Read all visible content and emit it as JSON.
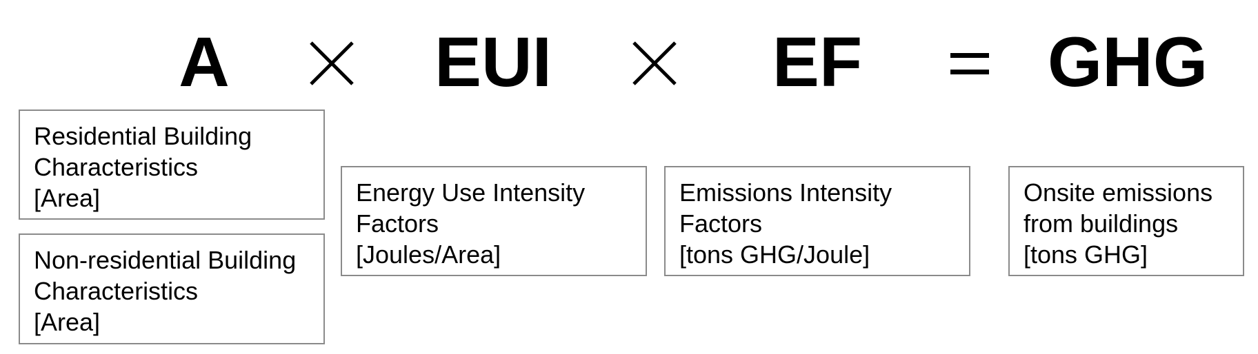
{
  "equation": {
    "term_area": "A",
    "op_multiply_1": "×",
    "term_eui": "EUI",
    "op_multiply_2": "×",
    "term_ef": "EF",
    "op_equals": "=",
    "term_ghg": "GHG"
  },
  "boxes": {
    "residential": {
      "line1": "Residential Building",
      "line2": "Characteristics",
      "line3": "[Area]"
    },
    "nonresidential": {
      "line1": "Non-residential Building",
      "line2": "Characteristics",
      "line3": "[Area]"
    },
    "eui": {
      "line1": "Energy Use Intensity",
      "line2": "Factors",
      "line3": "[Joules/Area]"
    },
    "ef": {
      "line1": "Emissions Intensity",
      "line2": "Factors",
      "line3": "[tons GHG/Joule]"
    },
    "ghg": {
      "line1": "Onsite emissions",
      "line2": "from buildings",
      "line3": "[tons GHG]"
    }
  },
  "colors": {
    "text": "#000000",
    "box_border": "#8a8a8a",
    "background": "#ffffff"
  }
}
